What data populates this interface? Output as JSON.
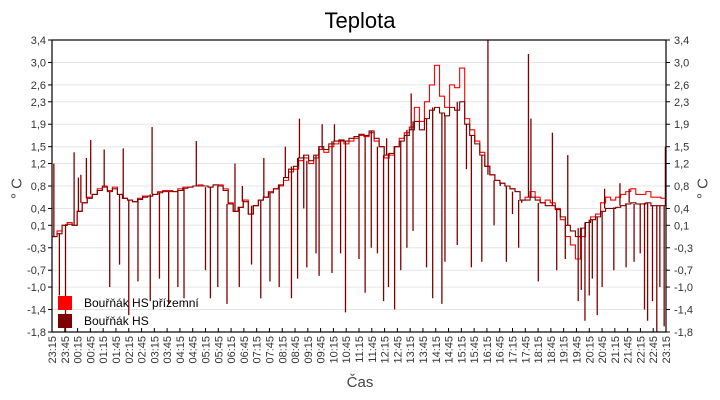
{
  "chart_data": {
    "type": "line",
    "title": "Teplota",
    "xlabel": "Čas",
    "ylabel": "° C",
    "ylim": [
      -1.8,
      3.4
    ],
    "yticks": [
      "3,4",
      "3,0",
      "2,6",
      "2,3",
      "1,9",
      "1,5",
      "1,2",
      "0,8",
      "0,4",
      "0,1",
      "-0,3",
      "-0,7",
      "-1,0",
      "-1,4",
      "-1,8"
    ],
    "ytick_values": [
      3.4,
      3.0,
      2.6,
      2.3,
      1.9,
      1.5,
      1.2,
      0.8,
      0.4,
      0.1,
      -0.3,
      -0.7,
      -1.0,
      -1.4,
      -1.8
    ],
    "xticks": [
      "23:15",
      "23:45",
      "00:15",
      "00:45",
      "01:15",
      "01:45",
      "02:15",
      "02:45",
      "03:15",
      "03:45",
      "04:15",
      "04:45",
      "05:15",
      "05:45",
      "06:15",
      "06:45",
      "07:15",
      "07:45",
      "08:15",
      "08:45",
      "09:15",
      "09:45",
      "10:15",
      "10:45",
      "11:15",
      "11:45",
      "12:15",
      "12:45",
      "13:15",
      "13:45",
      "14:15",
      "14:45",
      "15:15",
      "15:45",
      "16:15",
      "16:45",
      "17:15",
      "17:45",
      "18:15",
      "18:45",
      "19:15",
      "19:45",
      "20:15",
      "20:45",
      "21:15",
      "21:45",
      "22:15",
      "22:45",
      "23:15"
    ],
    "grid": true,
    "legend_position": "lower-left",
    "x_interval_minutes": 15,
    "x_start": "23:15",
    "series": [
      {
        "name": "Bouřňák HS přízemní",
        "color": "#ff0000",
        "values": [
          -0.1,
          0.0,
          0.1,
          0.15,
          0.1,
          0.35,
          0.5,
          0.6,
          0.65,
          0.75,
          0.8,
          0.72,
          0.78,
          0.65,
          0.58,
          0.55,
          0.52,
          0.58,
          0.62,
          0.62,
          0.65,
          0.7,
          0.72,
          0.72,
          0.7,
          0.75,
          0.78,
          0.78,
          0.8,
          0.82,
          0.8,
          0.78,
          0.82,
          0.82,
          0.75,
          0.5,
          0.35,
          0.42,
          0.55,
          0.3,
          0.45,
          0.55,
          0.6,
          0.7,
          0.75,
          0.8,
          0.9,
          1.05,
          1.1,
          1.25,
          1.3,
          1.2,
          1.3,
          1.45,
          1.4,
          1.5,
          1.55,
          1.6,
          1.55,
          1.6,
          1.65,
          1.7,
          1.68,
          1.75,
          1.6,
          1.5,
          1.3,
          1.35,
          1.5,
          1.65,
          1.75,
          1.85,
          2.2,
          1.95,
          2.3,
          2.6,
          2.95,
          2.4,
          2.2,
          2.6,
          2.55,
          2.9,
          2.0,
          1.8,
          1.6,
          1.4,
          1.15,
          1.0,
          0.9,
          0.85,
          0.8,
          0.75,
          0.7,
          0.55,
          0.6,
          0.7,
          0.6,
          0.5,
          0.55,
          0.5,
          0.4,
          0.2,
          -0.1,
          -0.25,
          -0.5,
          -0.1,
          0.15,
          0.25,
          0.3,
          0.5,
          0.6,
          0.55,
          0.6,
          0.65,
          0.7,
          0.75,
          0.65,
          0.65,
          0.7,
          0.6,
          0.6,
          0.58,
          0.58
        ]
      },
      {
        "name": "Bouřňák HS",
        "color": "#800000",
        "values": [
          -0.1,
          -0.05,
          0.1,
          0.12,
          0.1,
          0.35,
          0.5,
          0.58,
          0.65,
          0.72,
          0.78,
          0.7,
          0.75,
          0.65,
          0.58,
          0.55,
          0.52,
          0.56,
          0.6,
          0.62,
          0.65,
          0.68,
          0.7,
          0.7,
          0.7,
          0.72,
          0.76,
          0.78,
          0.8,
          0.8,
          0.8,
          0.78,
          0.82,
          0.8,
          0.72,
          0.48,
          0.35,
          0.42,
          0.52,
          0.3,
          0.45,
          0.55,
          0.6,
          0.68,
          0.75,
          0.82,
          0.95,
          1.1,
          1.15,
          1.3,
          1.35,
          1.25,
          1.35,
          1.5,
          1.45,
          1.55,
          1.6,
          1.62,
          1.6,
          1.65,
          1.68,
          1.72,
          1.7,
          1.78,
          1.65,
          1.5,
          1.35,
          1.38,
          1.5,
          1.6,
          1.7,
          1.8,
          1.95,
          1.8,
          2.0,
          2.15,
          2.2,
          2.1,
          2.05,
          2.2,
          2.15,
          2.3,
          1.9,
          1.7,
          1.55,
          1.35,
          1.15,
          1.0,
          0.9,
          0.85,
          0.8,
          0.75,
          0.7,
          0.55,
          0.55,
          0.6,
          0.55,
          0.5,
          0.45,
          0.45,
          0.38,
          0.25,
          0.1,
          0.0,
          -0.1,
          0.05,
          0.15,
          0.2,
          0.25,
          0.35,
          0.4,
          0.4,
          0.42,
          0.45,
          0.48,
          0.5,
          0.48,
          0.48,
          0.5,
          0.45,
          0.45,
          0.45,
          0.45
        ]
      }
    ],
    "spikes_dark_series": [
      {
        "x_frac": 0.003,
        "to": 1.2
      },
      {
        "x_frac": 0.012,
        "to": -1.15
      },
      {
        "x_frac": 0.022,
        "to": -1.8
      },
      {
        "x_frac": 0.036,
        "to": 1.4
      },
      {
        "x_frac": 0.043,
        "to": 0.95
      },
      {
        "x_frac": 0.047,
        "to": 1.0
      },
      {
        "x_frac": 0.056,
        "to": 1.3
      },
      {
        "x_frac": 0.063,
        "to": 1.62
      },
      {
        "x_frac": 0.085,
        "to": 1.45
      },
      {
        "x_frac": 0.094,
        "to": -1.0
      },
      {
        "x_frac": 0.11,
        "to": -0.6
      },
      {
        "x_frac": 0.116,
        "to": 1.47
      },
      {
        "x_frac": 0.125,
        "to": -1.5
      },
      {
        "x_frac": 0.14,
        "to": -0.9
      },
      {
        "x_frac": 0.16,
        "to": -1.25
      },
      {
        "x_frac": 0.163,
        "to": 1.85
      },
      {
        "x_frac": 0.175,
        "to": -0.85
      },
      {
        "x_frac": 0.19,
        "to": -1.3
      },
      {
        "x_frac": 0.205,
        "to": -1.0
      },
      {
        "x_frac": 0.215,
        "to": -1.2
      },
      {
        "x_frac": 0.235,
        "to": 1.6
      },
      {
        "x_frac": 0.25,
        "to": -0.7
      },
      {
        "x_frac": 0.258,
        "to": -1.2
      },
      {
        "x_frac": 0.27,
        "to": -1.0
      },
      {
        "x_frac": 0.285,
        "to": -1.3
      },
      {
        "x_frac": 0.298,
        "to": 1.2
      },
      {
        "x_frac": 0.305,
        "to": -1.0
      },
      {
        "x_frac": 0.31,
        "to": 0.8
      },
      {
        "x_frac": 0.325,
        "to": -0.6
      },
      {
        "x_frac": 0.34,
        "to": -1.2
      },
      {
        "x_frac": 0.345,
        "to": 1.3
      },
      {
        "x_frac": 0.355,
        "to": -0.9
      },
      {
        "x_frac": 0.37,
        "to": -1.0
      },
      {
        "x_frac": 0.38,
        "to": 1.5
      },
      {
        "x_frac": 0.39,
        "to": -1.2
      },
      {
        "x_frac": 0.4,
        "to": -0.85
      },
      {
        "x_frac": 0.403,
        "to": 2.0
      },
      {
        "x_frac": 0.41,
        "to": 0.4
      },
      {
        "x_frac": 0.415,
        "to": -0.65
      },
      {
        "x_frac": 0.43,
        "to": -0.4
      },
      {
        "x_frac": 0.435,
        "to": -0.8
      },
      {
        "x_frac": 0.44,
        "to": 1.9
      },
      {
        "x_frac": 0.456,
        "to": -0.75
      },
      {
        "x_frac": 0.46,
        "to": 1.9
      },
      {
        "x_frac": 0.47,
        "to": -0.4
      },
      {
        "x_frac": 0.478,
        "to": -1.45
      },
      {
        "x_frac": 0.5,
        "to": -0.5
      },
      {
        "x_frac": 0.51,
        "to": -1.1
      },
      {
        "x_frac": 0.52,
        "to": -0.3
      },
      {
        "x_frac": 0.53,
        "to": -0.4
      },
      {
        "x_frac": 0.54,
        "to": -1.25
      },
      {
        "x_frac": 0.545,
        "to": 1.65
      },
      {
        "x_frac": 0.548,
        "to": -1.0
      },
      {
        "x_frac": 0.558,
        "to": -1.4
      },
      {
        "x_frac": 0.568,
        "to": -0.7
      },
      {
        "x_frac": 0.578,
        "to": -0.3
      },
      {
        "x_frac": 0.585,
        "to": 2.45
      },
      {
        "x_frac": 0.588,
        "to": 0.0
      },
      {
        "x_frac": 0.61,
        "to": -0.65
      },
      {
        "x_frac": 0.62,
        "to": -1.2
      },
      {
        "x_frac": 0.635,
        "to": -1.3
      },
      {
        "x_frac": 0.64,
        "to": -0.55
      },
      {
        "x_frac": 0.66,
        "to": -0.25
      },
      {
        "x_frac": 0.675,
        "to": 1.1
      },
      {
        "x_frac": 0.683,
        "to": -0.65
      },
      {
        "x_frac": 0.7,
        "to": -0.55
      },
      {
        "x_frac": 0.71,
        "to": 3.4
      },
      {
        "x_frac": 0.72,
        "to": 0.1
      },
      {
        "x_frac": 0.73,
        "to": 0.8
      },
      {
        "x_frac": 0.74,
        "to": -0.55
      },
      {
        "x_frac": 0.75,
        "to": 0.3
      },
      {
        "x_frac": 0.76,
        "to": -0.3
      },
      {
        "x_frac": 0.765,
        "to": 0.5
      },
      {
        "x_frac": 0.776,
        "to": 3.15
      },
      {
        "x_frac": 0.78,
        "to": 2.0
      },
      {
        "x_frac": 0.792,
        "to": -0.9
      },
      {
        "x_frac": 0.815,
        "to": 1.75
      },
      {
        "x_frac": 0.822,
        "to": -0.7
      },
      {
        "x_frac": 0.836,
        "to": -0.5
      },
      {
        "x_frac": 0.84,
        "to": 1.35
      },
      {
        "x_frac": 0.857,
        "to": -1.25
      },
      {
        "x_frac": 0.862,
        "to": -1.05
      },
      {
        "x_frac": 0.868,
        "to": -1.6
      },
      {
        "x_frac": 0.875,
        "to": -1.15
      },
      {
        "x_frac": 0.88,
        "to": -0.85
      },
      {
        "x_frac": 0.888,
        "to": -1.5
      },
      {
        "x_frac": 0.896,
        "to": -1.0
      },
      {
        "x_frac": 0.9,
        "to": 0.75
      },
      {
        "x_frac": 0.915,
        "to": -0.7
      },
      {
        "x_frac": 0.925,
        "to": 0.85
      },
      {
        "x_frac": 0.935,
        "to": -0.65
      },
      {
        "x_frac": 0.94,
        "to": 0.75
      },
      {
        "x_frac": 0.948,
        "to": -0.55
      },
      {
        "x_frac": 0.958,
        "to": -0.4
      },
      {
        "x_frac": 0.965,
        "to": -1.4
      },
      {
        "x_frac": 0.97,
        "to": -1.6
      },
      {
        "x_frac": 0.978,
        "to": -1.25
      },
      {
        "x_frac": 0.985,
        "to": -1.8
      },
      {
        "x_frac": 0.99,
        "to": -1.0
      },
      {
        "x_frac": 0.997,
        "to": -1.7
      },
      {
        "x_frac": 0.999,
        "to": 1.5
      }
    ]
  },
  "legend": {
    "items": [
      {
        "label": "Bouřňák HS přízemní",
        "color": "#ff0000"
      },
      {
        "label": "Bouřňák HS",
        "color": "#800000"
      }
    ]
  }
}
